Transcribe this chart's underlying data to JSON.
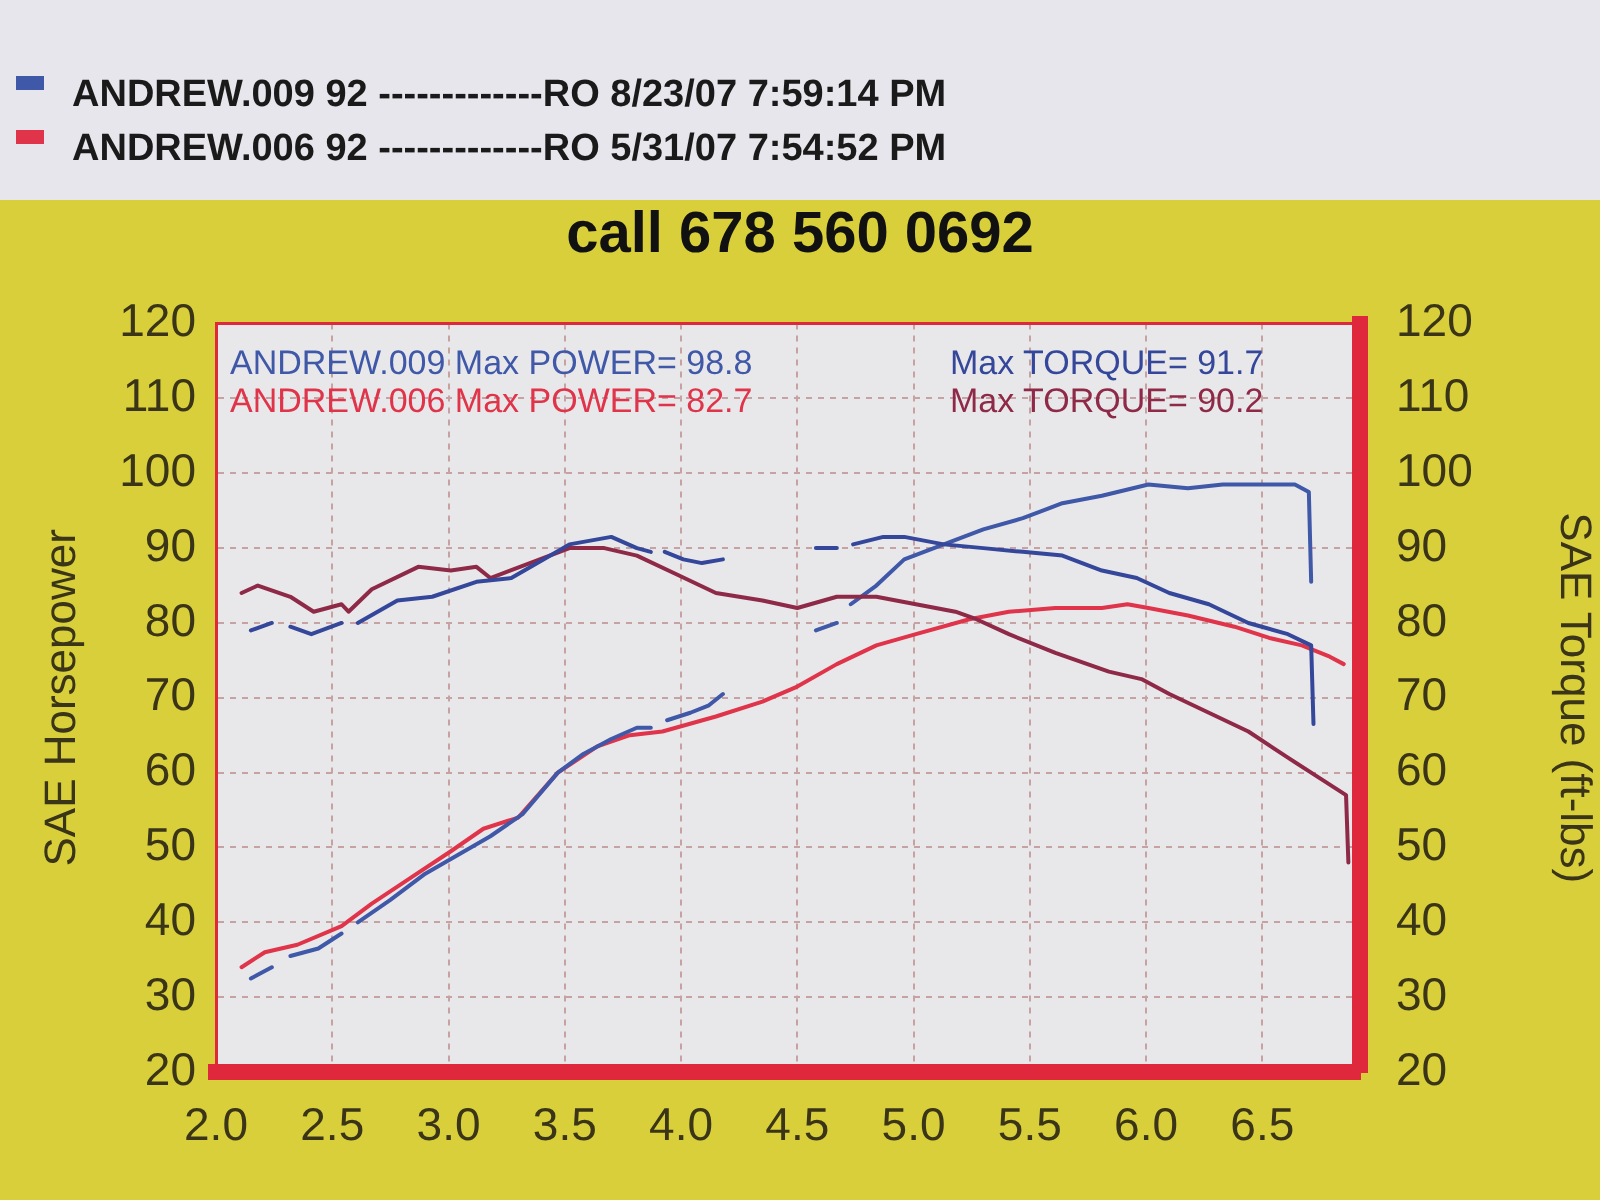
{
  "chart_data": {
    "type": "line",
    "title": "call 678 560 0692",
    "ylabel": "SAE Horsepower",
    "y2label": "SAE Torque (ft-lbs)",
    "annotations": [
      "ANDREW.009 Max POWER= 98.8",
      "ANDREW.006 Max POWER= 82.7",
      "Max TORQUE= 91.7",
      "Max TORQUE= 90.2"
    ],
    "xlim": [
      2.0,
      6.92
    ],
    "xticks": [
      {
        "value": 2,
        "label": "2.0"
      },
      2.5,
      {
        "value": 3,
        "label": "3.0"
      },
      3.5,
      {
        "value": 4,
        "label": "4.0"
      },
      4.5,
      {
        "value": 5,
        "label": "5.0"
      },
      5.5,
      {
        "value": 6,
        "label": "6.0"
      },
      6.5
    ],
    "ylim": [
      20,
      120
    ],
    "yticks": [
      20,
      30,
      40,
      50,
      60,
      70,
      80,
      90,
      100,
      110,
      120
    ],
    "y2lim": [
      20,
      120
    ],
    "y2ticks": [
      20,
      30,
      40,
      50,
      60,
      70,
      80,
      90,
      100,
      110,
      120
    ],
    "grid": true,
    "legend": "top",
    "marker": "none",
    "series": [
      {
        "name": "ANDREW.009 92 -------------RO 8/23/07 7:59:14 PM",
        "color": "#4058a8",
        "x": [
          2.15,
          2.24,
          2.28,
          2.32,
          2.44,
          2.54,
          2.57,
          2.61,
          2.75,
          2.9,
          3.04,
          3.18,
          3.32,
          3.47,
          3.58,
          3.7,
          3.81,
          3.87,
          3.9,
          3.94,
          4.04,
          4.12,
          4.18,
          4.4,
          4.58,
          4.67,
          4.7,
          4.73,
          4.84,
          4.96,
          5.13,
          5.3,
          5.47,
          5.64,
          5.81,
          6.01,
          6.18,
          6.33,
          6.5,
          6.64,
          6.7,
          6.71
        ],
        "values": [
          32.5,
          34,
          null,
          35.5,
          36.5,
          38.5,
          null,
          40,
          43,
          46.5,
          49,
          51.5,
          54.5,
          60,
          62.5,
          64.5,
          66,
          66,
          null,
          67,
          68,
          69,
          70.5,
          null,
          79,
          80,
          null,
          82.5,
          85,
          88.5,
          90.5,
          92.5,
          94,
          96,
          97,
          98.5,
          98,
          98.5,
          98.5,
          98.5,
          97.5,
          85.5
        ]
      },
      {
        "name": "ANDREW.006 92 -------------RO 5/31/07 7:54:52 PM",
        "color": "#e0344a",
        "x": [
          2.11,
          2.21,
          2.35,
          2.54,
          2.67,
          2.84,
          3.01,
          3.15,
          3.3,
          3.47,
          3.64,
          3.78,
          3.92,
          4.15,
          4.35,
          4.5,
          4.67,
          4.84,
          5.01,
          5.24,
          5.41,
          5.61,
          5.81,
          5.92,
          6.01,
          6.18,
          6.38,
          6.53,
          6.67,
          6.79,
          6.85
        ],
        "values": [
          34,
          36,
          37,
          39.5,
          42.5,
          46,
          49.5,
          52.5,
          54,
          60,
          63.5,
          65,
          65.5,
          67.5,
          69.5,
          71.5,
          74.5,
          77,
          78.5,
          80.5,
          81.5,
          82,
          82,
          82.5,
          82,
          81,
          79.5,
          78,
          77,
          75.5,
          74.5
        ]
      },
      {
        "color": "#34479a",
        "axis": "y2",
        "x": [
          2.15,
          2.24,
          2.28,
          2.32,
          2.41,
          2.54,
          2.57,
          2.61,
          2.78,
          2.93,
          3.12,
          3.27,
          3.41,
          3.52,
          3.7,
          3.81,
          3.87,
          3.9,
          3.93,
          4.01,
          4.09,
          4.18,
          4.4,
          4.58,
          4.67,
          4.7,
          4.74,
          4.87,
          4.96,
          5.13,
          5.3,
          5.47,
          5.64,
          5.81,
          5.96,
          6.1,
          6.27,
          6.44,
          6.61,
          6.71,
          6.72
        ],
        "values": [
          79,
          80,
          null,
          79.5,
          78.5,
          80,
          null,
          80,
          83,
          83.5,
          85.5,
          86,
          88.5,
          90.5,
          91.5,
          90,
          89.5,
          null,
          89.5,
          88.5,
          88,
          88.5,
          null,
          90,
          90,
          null,
          90.5,
          91.5,
          91.5,
          90.5,
          90,
          89.5,
          89,
          87,
          86,
          84,
          82.5,
          80,
          78.5,
          77,
          66.5
        ]
      },
      {
        "color": "#8e2a48",
        "axis": "y2",
        "x": [
          2.11,
          2.18,
          2.32,
          2.42,
          2.54,
          2.57,
          2.67,
          2.87,
          3.01,
          3.12,
          3.18,
          3.35,
          3.52,
          3.67,
          3.81,
          3.98,
          4.15,
          4.35,
          4.5,
          4.67,
          4.84,
          5.01,
          5.18,
          5.27,
          5.41,
          5.61,
          5.84,
          5.98,
          6.1,
          6.27,
          6.44,
          6.61,
          6.76,
          6.86,
          6.87
        ],
        "values": [
          84,
          85,
          83.5,
          81.5,
          82.5,
          81.5,
          84.5,
          87.5,
          87,
          87.5,
          86,
          88,
          90,
          90,
          89,
          86.5,
          84,
          83,
          82,
          83.5,
          83.5,
          82.5,
          81.5,
          80.5,
          78.5,
          76,
          73.5,
          72.5,
          70.5,
          68,
          65.5,
          62,
          59,
          57,
          48
        ]
      }
    ]
  }
}
